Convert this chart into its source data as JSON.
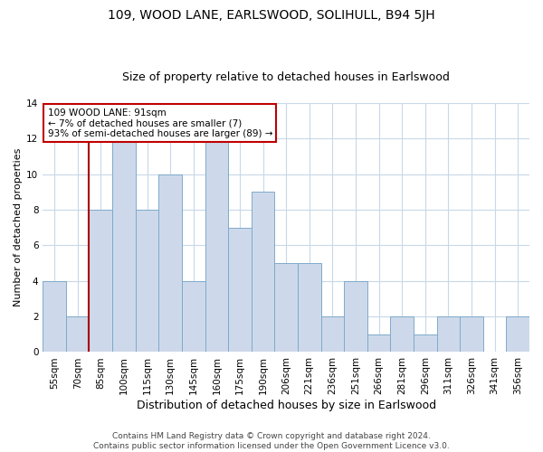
{
  "title": "109, WOOD LANE, EARLSWOOD, SOLIHULL, B94 5JH",
  "subtitle": "Size of property relative to detached houses in Earlswood",
  "xlabel": "Distribution of detached houses by size in Earlswood",
  "ylabel": "Number of detached properties",
  "categories": [
    "55sqm",
    "70sqm",
    "85sqm",
    "100sqm",
    "115sqm",
    "130sqm",
    "145sqm",
    "160sqm",
    "175sqm",
    "190sqm",
    "206sqm",
    "221sqm",
    "236sqm",
    "251sqm",
    "266sqm",
    "281sqm",
    "296sqm",
    "311sqm",
    "326sqm",
    "341sqm",
    "356sqm"
  ],
  "values": [
    4,
    2,
    8,
    12,
    8,
    10,
    4,
    12,
    7,
    9,
    5,
    5,
    2,
    4,
    1,
    2,
    1,
    2,
    2,
    0,
    2
  ],
  "bar_color": "#cdd9ea",
  "bar_edge_color": "#7eaacb",
  "red_line_x": 2,
  "ylim": [
    0,
    14
  ],
  "yticks": [
    0,
    2,
    4,
    6,
    8,
    10,
    12,
    14
  ],
  "annotation_text": "109 WOOD LANE: 91sqm\n← 7% of detached houses are smaller (7)\n93% of semi-detached houses are larger (89) →",
  "annotation_box_color": "#ffffff",
  "annotation_box_edge": "#c00000",
  "footer_line1": "Contains HM Land Registry data © Crown copyright and database right 2024.",
  "footer_line2": "Contains public sector information licensed under the Open Government Licence v3.0.",
  "title_fontsize": 10,
  "subtitle_fontsize": 9,
  "xlabel_fontsize": 9,
  "ylabel_fontsize": 8,
  "tick_fontsize": 7.5,
  "annotation_fontsize": 7.5,
  "footer_fontsize": 6.5,
  "red_line_color": "#aa0000"
}
